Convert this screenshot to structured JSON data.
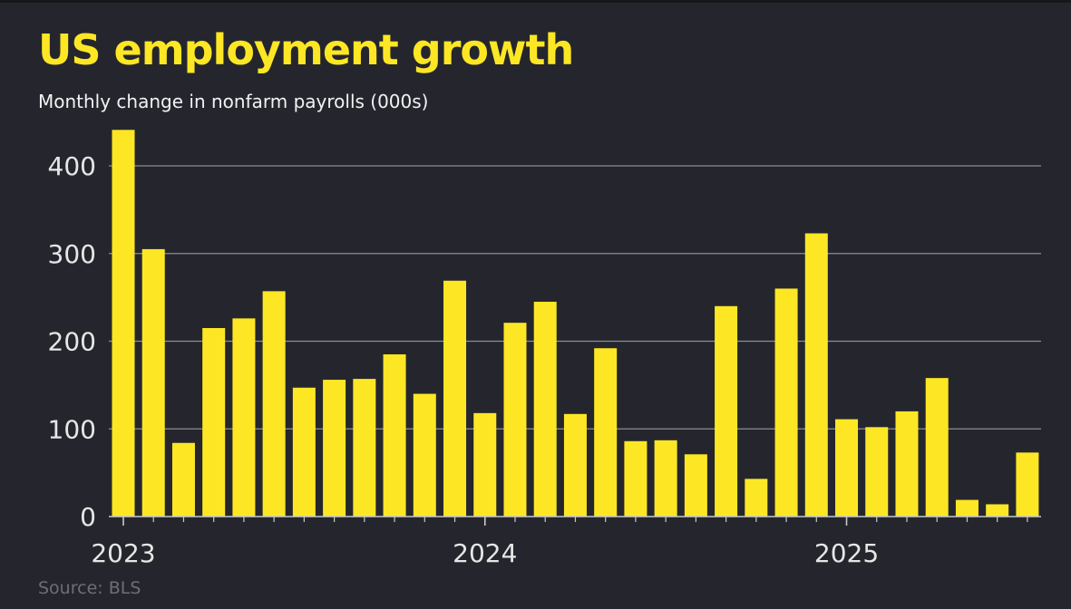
{
  "header": {
    "title": "US employment growth",
    "subtitle": "Monthly change in nonfarm payrolls (000s)"
  },
  "footer": {
    "source": "Source: BLS"
  },
  "colors": {
    "background": "#25262d",
    "bar": "#fde725",
    "grid": "#8c8d93",
    "axis_text": "#e6e6e6",
    "title": "#fde725",
    "source": "#6e6f76"
  },
  "chart_data": {
    "type": "bar",
    "title": "US employment growth",
    "subtitle": "Monthly change in nonfarm payrolls (000s)",
    "xlabel": "",
    "ylabel": "",
    "ylim": [
      0,
      440
    ],
    "yticks": [
      0,
      100,
      200,
      300,
      400
    ],
    "grid": true,
    "x_tick_labels": [
      {
        "label": "2023",
        "index": 0
      },
      {
        "label": "2024",
        "index": 12
      },
      {
        "label": "2025",
        "index": 24
      }
    ],
    "categories": [
      "2023-01",
      "2023-02",
      "2023-03",
      "2023-04",
      "2023-05",
      "2023-06",
      "2023-07",
      "2023-08",
      "2023-09",
      "2023-10",
      "2023-11",
      "2023-12",
      "2024-01",
      "2024-02",
      "2024-03",
      "2024-04",
      "2024-05",
      "2024-06",
      "2024-07",
      "2024-08",
      "2024-09",
      "2024-10",
      "2024-11",
      "2024-12",
      "2025-01",
      "2025-02",
      "2025-03",
      "2025-04",
      "2025-05",
      "2025-06",
      "2025-07"
    ],
    "values": [
      441,
      305,
      84,
      215,
      226,
      257,
      147,
      156,
      157,
      185,
      140,
      269,
      118,
      221,
      245,
      117,
      192,
      86,
      87,
      71,
      240,
      43,
      260,
      323,
      111,
      102,
      120,
      158,
      19,
      14,
      73
    ]
  }
}
